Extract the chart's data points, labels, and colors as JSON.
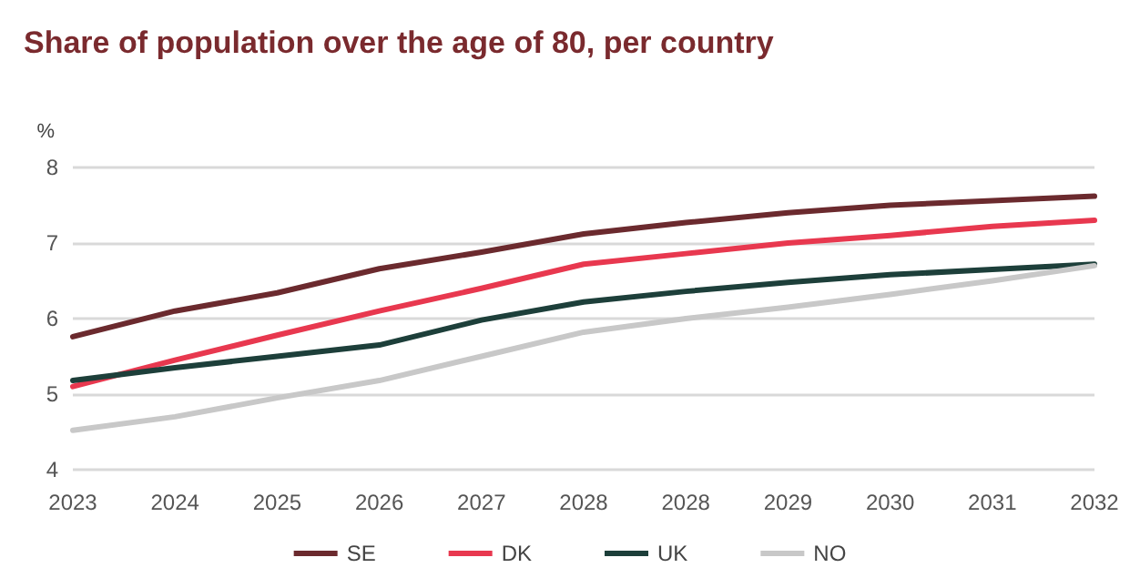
{
  "chart_data": {
    "type": "line",
    "title": "Share of population over the age of 80, per country",
    "ylabel": "%",
    "categories": [
      "2023",
      "2024",
      "2025",
      "2026",
      "2027",
      "2028",
      "2028",
      "2029",
      "2030",
      "2031",
      "2032"
    ],
    "series": [
      {
        "name": "SE",
        "color": "#6b2a2e",
        "values": [
          5.76,
          6.1,
          6.34,
          6.66,
          6.88,
          7.12,
          7.27,
          7.4,
          7.5,
          7.56,
          7.62
        ]
      },
      {
        "name": "DK",
        "color": "#e8384f",
        "values": [
          5.1,
          5.45,
          5.78,
          6.1,
          6.4,
          6.72,
          6.86,
          7.0,
          7.1,
          7.22,
          7.3
        ]
      },
      {
        "name": "UK",
        "color": "#1d3f3a",
        "values": [
          5.18,
          5.35,
          5.5,
          5.65,
          5.98,
          6.22,
          6.36,
          6.48,
          6.58,
          6.65,
          6.72
        ]
      },
      {
        "name": "NO",
        "color": "#c8c8c8",
        "values": [
          4.52,
          4.7,
          4.95,
          5.18,
          5.5,
          5.82,
          6.0,
          6.15,
          6.32,
          6.5,
          6.7
        ]
      }
    ],
    "ylim": [
      4,
      8
    ],
    "yticks": [
      4,
      5,
      6,
      7,
      8
    ],
    "grid": "y",
    "legend": "bottom",
    "marker": "none",
    "line_style": "solid"
  }
}
